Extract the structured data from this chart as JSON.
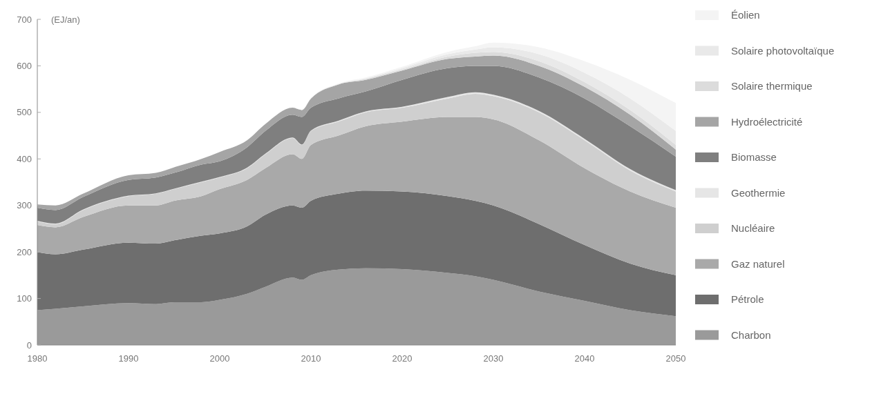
{
  "chart_data": {
    "type": "area",
    "stacked": true,
    "ylabel": "(EJ/an)",
    "legend": "right",
    "grid": false,
    "x": [
      1980,
      1982,
      1985,
      1990,
      1993,
      1995,
      1998,
      2000,
      2003,
      2005,
      2008,
      2009,
      2010,
      2013,
      2016,
      2020,
      2025,
      2028,
      2030,
      2035,
      2040,
      2045,
      2050
    ],
    "xlim": [
      1980,
      2050
    ],
    "xticks": [
      1980,
      1990,
      2000,
      2010,
      2020,
      2030,
      2040,
      2050
    ],
    "ylim": [
      0,
      700
    ],
    "yticks": [
      0,
      100,
      200,
      300,
      400,
      500,
      600,
      700
    ],
    "series": [
      {
        "name": "Charbon",
        "color": "#9a9a9a",
        "values": [
          75,
          78,
          83,
          90,
          88,
          92,
          92,
          97,
          110,
          125,
          145,
          140,
          150,
          162,
          165,
          163,
          155,
          148,
          140,
          115,
          95,
          75,
          62
        ]
      },
      {
        "name": "Pétrole",
        "color": "#6e6e6e",
        "values": [
          125,
          117,
          122,
          130,
          130,
          133,
          143,
          143,
          145,
          155,
          155,
          155,
          160,
          163,
          167,
          167,
          165,
          162,
          160,
          145,
          120,
          100,
          88
        ]
      },
      {
        "name": "Gaz naturel",
        "color": "#a9a9a9",
        "values": [
          58,
          58,
          70,
          80,
          82,
          85,
          85,
          95,
          100,
          100,
          110,
          105,
          120,
          125,
          138,
          150,
          170,
          180,
          185,
          180,
          165,
          155,
          145
        ]
      },
      {
        "name": "Nucléaire",
        "color": "#cfcfcf",
        "values": [
          8,
          7,
          15,
          20,
          25,
          25,
          30,
          25,
          25,
          30,
          35,
          30,
          30,
          30,
          30,
          30,
          40,
          50,
          50,
          60,
          60,
          45,
          35
        ]
      },
      {
        "name": "Geothermie",
        "color": "#e6e6e6",
        "values": [
          1,
          1,
          1,
          1,
          1,
          1,
          1,
          1,
          1,
          1,
          1,
          1,
          1,
          2,
          2,
          2,
          3,
          3,
          3,
          3,
          3,
          3,
          3
        ]
      },
      {
        "name": "Biomasse",
        "color": "#7f7f7f",
        "values": [
          28,
          29,
          27,
          34,
          34,
          34,
          37,
          34,
          44,
          49,
          49,
          59,
          49,
          48,
          43,
          58,
          62,
          57,
          62,
          72,
          87,
          92,
          72
        ]
      },
      {
        "name": "Hydroélectricité",
        "color": "#a5a5a5",
        "values": [
          7,
          10,
          7,
          10,
          10,
          12,
          12,
          20,
          15,
          15,
          15,
          15,
          20,
          30,
          25,
          20,
          20,
          20,
          22,
          25,
          25,
          25,
          15
        ]
      },
      {
        "name": "Solaire thermique",
        "color": "#dcdcdc",
        "values": [
          0,
          0,
          0,
          0,
          0,
          0,
          0,
          0,
          0,
          0,
          0,
          0,
          0,
          0,
          2,
          2,
          5,
          8,
          8,
          10,
          10,
          10,
          10
        ]
      },
      {
        "name": "Solaire photovoltaïque",
        "color": "#e9e9e9",
        "values": [
          0,
          0,
          0,
          0,
          0,
          0,
          0,
          0,
          0,
          0,
          0,
          0,
          0,
          1,
          1,
          3,
          5,
          7,
          10,
          15,
          20,
          25,
          30
        ]
      },
      {
        "name": "Éolien",
        "color": "#f4f4f4",
        "values": [
          0,
          0,
          0,
          0,
          0,
          0,
          0,
          0,
          0,
          0,
          0,
          1,
          1,
          1,
          2,
          3,
          5,
          7,
          10,
          15,
          25,
          40,
          60
        ]
      }
    ]
  }
}
